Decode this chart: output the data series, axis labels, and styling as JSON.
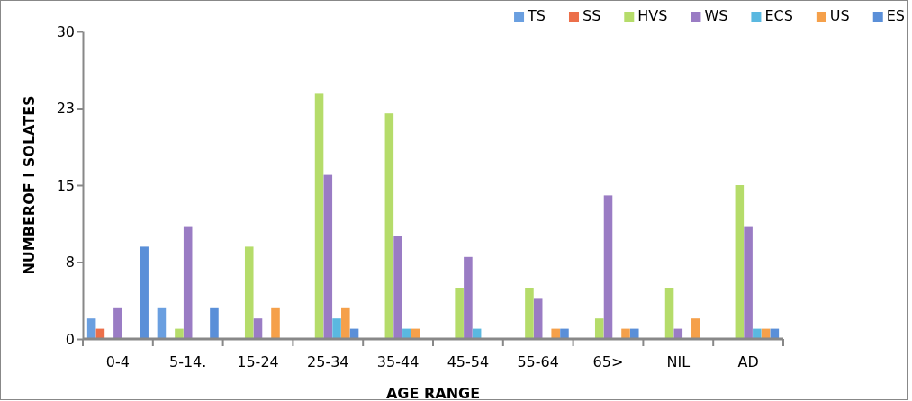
{
  "chart_data": {
    "type": "bar",
    "xlabel": "AGE RANGE",
    "ylabel": "NUMBEROF I SOLATES",
    "categories": [
      "0-4",
      "5-14.",
      "15-24",
      "25-34",
      "35-44",
      "45-54",
      "55-64",
      "65>",
      "NIL",
      "AD"
    ],
    "series": [
      {
        "name": "TS",
        "color": "#6a9fe0",
        "values": [
          2,
          3,
          0,
          0,
          0,
          0,
          0,
          0,
          0,
          0
        ]
      },
      {
        "name": "SS",
        "color": "#ec6f4a",
        "values": [
          1,
          0,
          0,
          0,
          0,
          0,
          0,
          0,
          0,
          0
        ]
      },
      {
        "name": "HVS",
        "color": "#b5dc6a",
        "values": [
          0,
          1,
          9,
          24,
          22,
          5,
          5,
          2,
          5,
          15
        ]
      },
      {
        "name": "WS",
        "color": "#9a7cc4",
        "values": [
          3,
          11,
          2,
          16,
          10,
          8,
          4,
          14,
          1,
          11
        ]
      },
      {
        "name": "ECS",
        "color": "#5ab8e0",
        "values": [
          0,
          0,
          0,
          2,
          1,
          1,
          0,
          0,
          0,
          1
        ]
      },
      {
        "name": "US",
        "color": "#f5a04a",
        "values": [
          0,
          0,
          3,
          3,
          1,
          0,
          1,
          1,
          2,
          1
        ]
      },
      {
        "name": "ES",
        "color": "#5a8fd8",
        "values": [
          9,
          3,
          0,
          1,
          0,
          0,
          1,
          1,
          0,
          1
        ]
      }
    ],
    "ylim": [
      0,
      30
    ],
    "yticks": [
      0,
      {
        "value": 7.5,
        "label": "8"
      },
      15,
      {
        "value": 22.5,
        "label": "23"
      },
      30
    ],
    "legend": "top right"
  }
}
